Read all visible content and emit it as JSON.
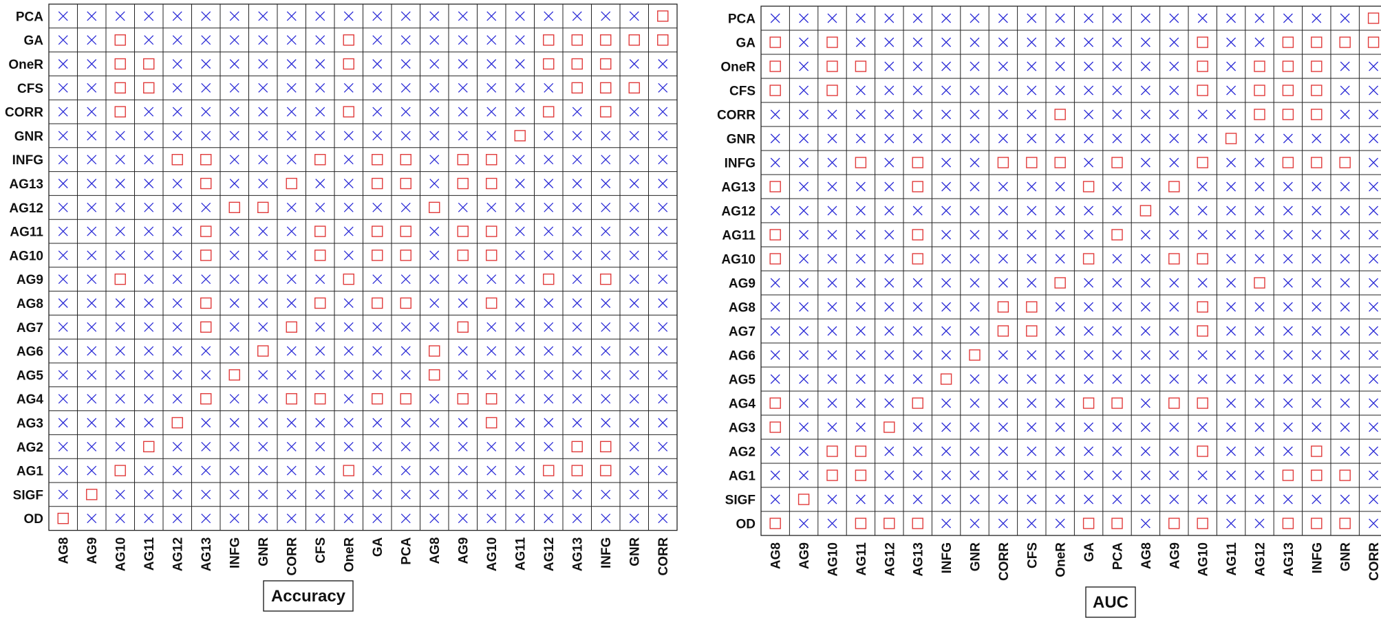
{
  "colors": {
    "cross": "#2b2bd6",
    "square": "#e03a3a",
    "grid": "#222222"
  },
  "marker_legend": {
    "cross": "x-mark",
    "square": "square-mark"
  },
  "chart_data": [
    {
      "type": "table",
      "title": "Accuracy",
      "rows": [
        "PCA",
        "GA",
        "OneR",
        "CFS",
        "CORR",
        "GNR",
        "INFG",
        "AG13",
        "AG12",
        "AG11",
        "AG10",
        "AG9",
        "AG8",
        "AG7",
        "AG6",
        "AG5",
        "AG4",
        "AG3",
        "AG2",
        "AG1",
        "SIGF",
        "OD"
      ],
      "columns": [
        "AG8",
        "AG9",
        "AG10",
        "AG11",
        "AG12",
        "AG13",
        "INFG",
        "GNR",
        "CORR",
        "CFS",
        "OneR",
        "GA",
        "PCA",
        "AG8",
        "AG9",
        "AG10",
        "AG11",
        "AG12",
        "AG13",
        "INFG",
        "GNR",
        "CORR"
      ],
      "cells": [
        "xxxxxxxxxxxxxxxxxxxxxs",
        "xxsxxxxxxxsxxxxxxsssss",
        "xxssxxxxxxsxxxxxxsssxx",
        "xxssxxxxxxxxxxxxxxsssx",
        "xxsxxxxxxxsxxxxxxsxsxx",
        "xxxxxxxxxxxxxxxxsxxxxx",
        "xxxxssxxxsxssxssxxxxxx",
        "xxxxxsxxsxxssxssxxxxxx",
        "xxxxxxssxxxxxsxxxxxxxx",
        "xxxxxsxxxsxssxssxxxxxx",
        "xxxxxsxxxsxssxssxxxxxx",
        "xxsxxxxxxxsxxxxxxsxsxx",
        "xxxxxsxxxsxssxxsxxxxxx",
        "xxxxxsxxsxxxxxsxxxxxxx",
        "xxxxxxxsxxxxxsxxxxxxxx",
        "xxxxxxsxxxxxxsxxxxxxxx",
        "xxxxxsxxssxssxssxxxxxx",
        "xxxxsxxxxxxxxxxsxxxxxx",
        "xxxsxxxxxxxxxxxxxxssxx",
        "xxsxxxxxxxsxxxxxxsssxx",
        "xsxxxxxxxxxxxxxxxxxxxx",
        "sxxxxxxxxxxxxxxxxxxxxx"
      ]
    },
    {
      "type": "table",
      "title": "AUC",
      "rows": [
        "PCA",
        "GA",
        "OneR",
        "CFS",
        "CORR",
        "GNR",
        "INFG",
        "AG13",
        "AG12",
        "AG11",
        "AG10",
        "AG9",
        "AG8",
        "AG7",
        "AG6",
        "AG5",
        "AG4",
        "AG3",
        "AG2",
        "AG1",
        "SIGF",
        "OD"
      ],
      "columns": [
        "AG8",
        "AG9",
        "AG10",
        "AG11",
        "AG12",
        "AG13",
        "INFG",
        "GNR",
        "CORR",
        "CFS",
        "OneR",
        "GA",
        "PCA",
        "AG8",
        "AG9",
        "AG10",
        "AG11",
        "AG12",
        "AG13",
        "INFG",
        "GNR",
        "CORR"
      ],
      "cells": [
        "xxxxxxxxxxxxxxxxxxxxxs",
        "sxsxxxxxxxxxxxxsxxssss",
        "sxssxxxxxxxxxxxsxsssxx",
        "sxsxxxxxxxxxxxxsxsssxx",
        "xxxxxxxxxxsxxxxxxsssxx",
        "xxxxxxxxxxxxxxxxsxxxxx",
        "xxxsxsxxsssxsxxsxxsssx",
        "sxxxxsxxxxxsxxsxxxxxxx",
        "xxxxxxxxxxxxxsxxxxxxxx",
        "sxxxxsxxxxxxsxxxxxxxxx",
        "sxxxxsxxxxxsxxssxxxxxx",
        "xxxxxxxxxxsxxxxxxsxxxx",
        "xxxxxxxxssxxxxxsxxxxxx",
        "xxxxxxxxssxxxxxsxxxxxx",
        "xxxxxxxsxxxxxxxxxxxxxx",
        "xxxxxxsxxxxxxxxxxxxxxx",
        "sxxxxsxxxxxssxssxxxxxx",
        "sxxxsxxxxxxxxxxxxxxxxx",
        "xxssxxxxxxxxxxxsxxxsxx",
        "xxssxxxxxxxxxxxxxxsssx",
        "xsxxxxxxxxxxxxxxxxxxxx",
        "sxxsssxxxxxssxssxxsssx"
      ]
    }
  ]
}
